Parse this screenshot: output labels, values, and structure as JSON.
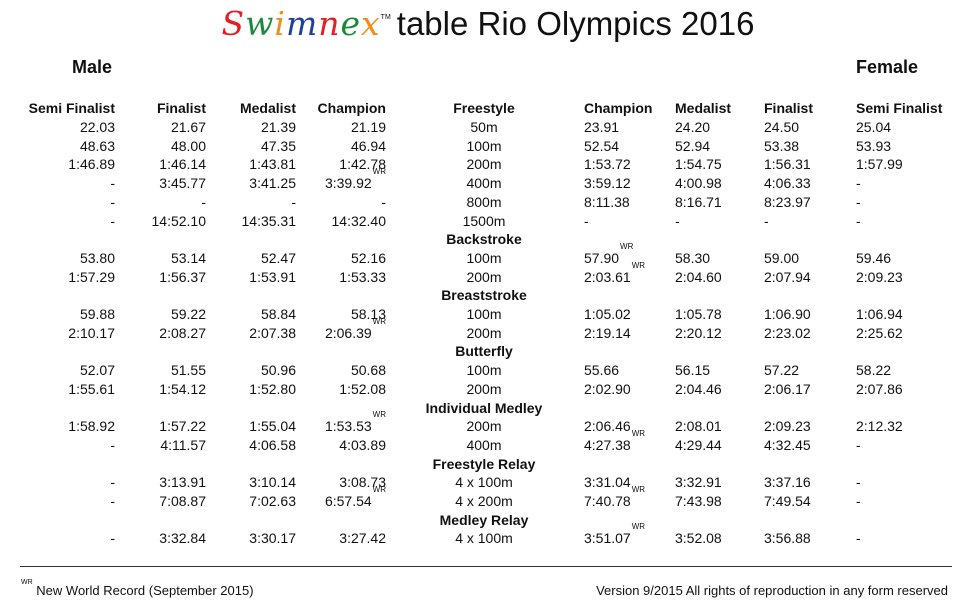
{
  "header": {
    "brand": "Swimnex",
    "brand_colors": [
      "#e31e24",
      "#1a8a3a",
      "#f28c1b",
      "#1f3fa0",
      "#e31e24",
      "#1a8a3a",
      "#f28c1b"
    ],
    "tm": "TM",
    "title": "table Rio Olympics 2016"
  },
  "genders": {
    "male": "Male",
    "female": "Female"
  },
  "columns": {
    "male": [
      "Semi Finalist",
      "Finalist",
      "Medalist",
      "Champion"
    ],
    "stroke_first": "Freestyle",
    "female": [
      "Champion",
      "Medalist",
      "Finalist",
      "Semi Finalist"
    ]
  },
  "rows": [
    {
      "type": "event",
      "male": [
        [
          "22.03"
        ],
        [
          "21.67"
        ],
        [
          "21.39"
        ],
        [
          "21.19"
        ]
      ],
      "event": "50m",
      "female": [
        [
          "23.91"
        ],
        [
          "24.20"
        ],
        [
          "24.50"
        ],
        [
          "25.04"
        ]
      ]
    },
    {
      "type": "event",
      "male": [
        [
          "48.63"
        ],
        [
          "48.00"
        ],
        [
          "47.35"
        ],
        [
          "46.94"
        ]
      ],
      "event": "100m",
      "female": [
        [
          "52.54"
        ],
        [
          "52.94"
        ],
        [
          "53.38"
        ],
        [
          "53.93"
        ]
      ]
    },
    {
      "type": "event",
      "male": [
        [
          "1:46.89"
        ],
        [
          "1:46.14"
        ],
        [
          "1:43.81"
        ],
        [
          "1:42.78"
        ]
      ],
      "event": "200m",
      "female": [
        [
          "1:53.72"
        ],
        [
          "1:54.75"
        ],
        [
          "1:56.31"
        ],
        [
          "1:57.99"
        ]
      ]
    },
    {
      "type": "event",
      "male": [
        [
          "-"
        ],
        [
          "3:45.77"
        ],
        [
          "3:41.25"
        ],
        [
          "3:39.92",
          "WR"
        ]
      ],
      "event": "400m",
      "female": [
        [
          "3:59.12"
        ],
        [
          "4:00.98"
        ],
        [
          "4:06.33"
        ],
        [
          "-"
        ]
      ]
    },
    {
      "type": "event",
      "male": [
        [
          "-"
        ],
        [
          "-"
        ],
        [
          "-"
        ],
        [
          "-"
        ]
      ],
      "event": "800m",
      "female": [
        [
          "8:11.38"
        ],
        [
          "8:16.71"
        ],
        [
          "8:23.97"
        ],
        [
          "-"
        ]
      ]
    },
    {
      "type": "event",
      "male": [
        [
          "-"
        ],
        [
          "14:52.10"
        ],
        [
          "14:35.31"
        ],
        [
          "14:32.40"
        ]
      ],
      "event": "1500m",
      "female": [
        [
          "-"
        ],
        [
          "-"
        ],
        [
          "-"
        ],
        [
          "-"
        ]
      ]
    },
    {
      "type": "category",
      "label": "Backstroke"
    },
    {
      "type": "event",
      "male": [
        [
          "53.80"
        ],
        [
          "53.14"
        ],
        [
          "52.47"
        ],
        [
          "52.16"
        ]
      ],
      "event": "100m",
      "female": [
        [
          "57.90",
          "WR"
        ],
        [
          "58.30"
        ],
        [
          "59.00"
        ],
        [
          "59.46"
        ]
      ]
    },
    {
      "type": "event",
      "male": [
        [
          "1:57.29"
        ],
        [
          "1:56.37"
        ],
        [
          "1:53.91"
        ],
        [
          "1:53.33"
        ]
      ],
      "event": "200m",
      "female": [
        [
          "2:03.61",
          "WR"
        ],
        [
          "2:04.60"
        ],
        [
          "2:07.94"
        ],
        [
          "2:09.23"
        ]
      ]
    },
    {
      "type": "category",
      "label": "Breaststroke"
    },
    {
      "type": "event",
      "male": [
        [
          "59.88"
        ],
        [
          "59.22"
        ],
        [
          "58.84"
        ],
        [
          "58.13"
        ]
      ],
      "event": "100m",
      "female": [
        [
          "1:05.02"
        ],
        [
          "1:05.78"
        ],
        [
          "1:06.90"
        ],
        [
          "1:06.94"
        ]
      ]
    },
    {
      "type": "event",
      "male": [
        [
          "2:10.17"
        ],
        [
          "2:08.27"
        ],
        [
          "2:07.38"
        ],
        [
          "2:06.39",
          "WR"
        ]
      ],
      "event": "200m",
      "female": [
        [
          "2:19.14"
        ],
        [
          "2:20.12"
        ],
        [
          "2:23.02"
        ],
        [
          "2:25.62"
        ]
      ]
    },
    {
      "type": "category",
      "label": "Butterfly"
    },
    {
      "type": "event",
      "male": [
        [
          "52.07"
        ],
        [
          "51.55"
        ],
        [
          "50.96"
        ],
        [
          "50.68"
        ]
      ],
      "event": "100m",
      "female": [
        [
          "55.66"
        ],
        [
          "56.15"
        ],
        [
          "57.22"
        ],
        [
          "58.22"
        ]
      ]
    },
    {
      "type": "event",
      "male": [
        [
          "1:55.61"
        ],
        [
          "1:54.12"
        ],
        [
          "1:52.80"
        ],
        [
          "1:52.08"
        ]
      ],
      "event": "200m",
      "female": [
        [
          "2:02.90"
        ],
        [
          "2:04.46"
        ],
        [
          "2:06.17"
        ],
        [
          "2:07.86"
        ]
      ]
    },
    {
      "type": "category",
      "label": "Individual Medley"
    },
    {
      "type": "event",
      "male": [
        [
          "1:58.92"
        ],
        [
          "1:57.22"
        ],
        [
          "1:55.04"
        ],
        [
          "1:53.53",
          "WR"
        ]
      ],
      "event": "200m",
      "female": [
        [
          "2:06.46"
        ],
        [
          "2:08.01"
        ],
        [
          "2:09.23"
        ],
        [
          "2:12.32"
        ]
      ]
    },
    {
      "type": "event",
      "male": [
        [
          "-"
        ],
        [
          "4:11.57"
        ],
        [
          "4:06.58"
        ],
        [
          "4:03.89"
        ]
      ],
      "event": "400m",
      "female": [
        [
          "4:27.38",
          "WR"
        ],
        [
          "4:29.44"
        ],
        [
          "4:32.45"
        ],
        [
          "-"
        ]
      ]
    },
    {
      "type": "category",
      "label": "Freestyle Relay"
    },
    {
      "type": "event",
      "male": [
        [
          "-"
        ],
        [
          "3:13.91"
        ],
        [
          "3:10.14"
        ],
        [
          "3:08.73"
        ]
      ],
      "event": "4 x 100m",
      "female": [
        [
          "3:31.04"
        ],
        [
          "3:32.91"
        ],
        [
          "3:37.16"
        ],
        [
          "-"
        ]
      ]
    },
    {
      "type": "event",
      "male": [
        [
          "-"
        ],
        [
          "7:08.87"
        ],
        [
          "7:02.63"
        ],
        [
          "6:57.54",
          "WR"
        ]
      ],
      "event": "4 x 200m",
      "female": [
        [
          "7:40.78",
          "WR"
        ],
        [
          "7:43.98"
        ],
        [
          "7:49.54"
        ],
        [
          "-"
        ]
      ]
    },
    {
      "type": "category",
      "label": "Medley Relay"
    },
    {
      "type": "event",
      "male": [
        [
          "-"
        ],
        [
          "3:32.84"
        ],
        [
          "3:30.17"
        ],
        [
          "3:27.42"
        ]
      ],
      "event": "4 x 100m",
      "female": [
        [
          "3:51.07",
          "WR"
        ],
        [
          "3:52.08"
        ],
        [
          "3:56.88"
        ],
        [
          "-"
        ]
      ]
    }
  ],
  "footer": {
    "wr_mark": "WR",
    "wr_note": "New World Record (September 2015)",
    "version": "Version 9/2015 All rights of reproduction in any form reserved"
  }
}
